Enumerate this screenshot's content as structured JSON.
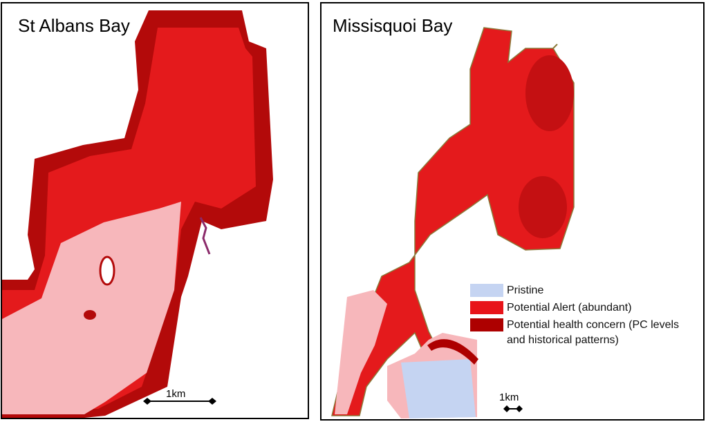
{
  "panels": [
    {
      "title": "St Albans Bay",
      "scale_label": "1km"
    },
    {
      "title": "Missisquoi Bay",
      "scale_label": "1km"
    }
  ],
  "legend": {
    "items": [
      {
        "label": "Pristine",
        "color": "#c5d4f2"
      },
      {
        "label": "Potential Alert  (abundant)",
        "color": "#e8141a"
      },
      {
        "label": "Potential health concern (PC levels and historical patterns)",
        "color": "#ad0000"
      }
    ]
  }
}
